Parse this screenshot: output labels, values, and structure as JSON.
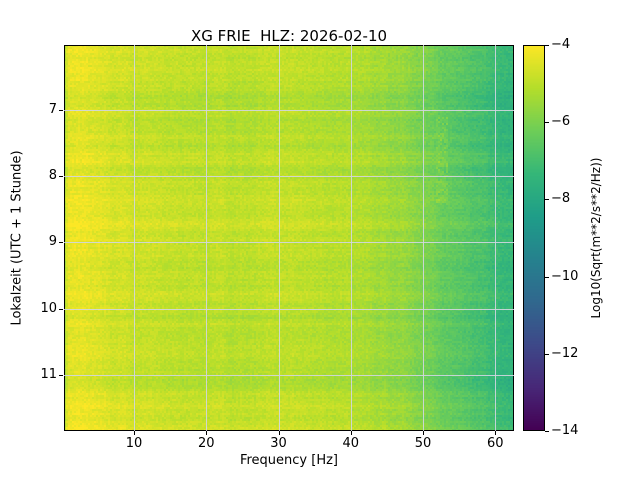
{
  "figure": {
    "background": "#ffffff",
    "spine_color": "#000000"
  },
  "chart_data": {
    "type": "heatmap",
    "title": "XG FRIE  HLZ: 2026-02-10",
    "xlabel": "Frequency [Hz]",
    "ylabel": "Lokalzeit (UTC + 1 Stunde)",
    "x_range": [
      0.3,
      62.6
    ],
    "y_range": [
      6.02,
      11.85
    ],
    "y_direction": "down",
    "x_ticks": [
      10,
      20,
      30,
      40,
      50,
      60
    ],
    "y_ticks": [
      7,
      8,
      9,
      10,
      11
    ],
    "grid": true,
    "grid_color": "rgba(210,214,225,0.9)",
    "colorbar": {
      "label": "Log10(Sqrt(m**2/s**2/Hz))",
      "range": [
        -14,
        -4
      ],
      "ticks": [
        -4,
        -6,
        -8,
        -10,
        -12,
        -14
      ],
      "colormap": "viridis",
      "colormap_stops": [
        "#440154",
        "#482878",
        "#3e4989",
        "#31688e",
        "#26828e",
        "#1f9e89",
        "#35b779",
        "#6ece58",
        "#b5de2b",
        "#fde725"
      ]
    },
    "frequency_profile": {
      "frequencies": [
        0.5,
        2,
        5,
        10,
        15,
        20,
        25,
        30,
        35,
        40,
        44,
        48,
        51,
        54,
        57,
        60,
        62.5
      ],
      "log_amplitude": [
        -4.2,
        -4.35,
        -4.55,
        -4.75,
        -4.85,
        -4.95,
        -5.0,
        -5.0,
        -5.1,
        -5.2,
        -5.35,
        -5.7,
        -6.1,
        -6.5,
        -6.8,
        -7.2,
        -7.4
      ]
    },
    "texture": {
      "seed": 42,
      "row_variation": 0.28,
      "pixel_noise": 0.22,
      "column_variation": 0.1,
      "bright_streak": {
        "freq": [
          51.8,
          53.4
        ],
        "time": [
          7.1,
          8.4
        ],
        "boost": 0.6
      },
      "left_edge_falloff_hz": 0.7
    }
  }
}
